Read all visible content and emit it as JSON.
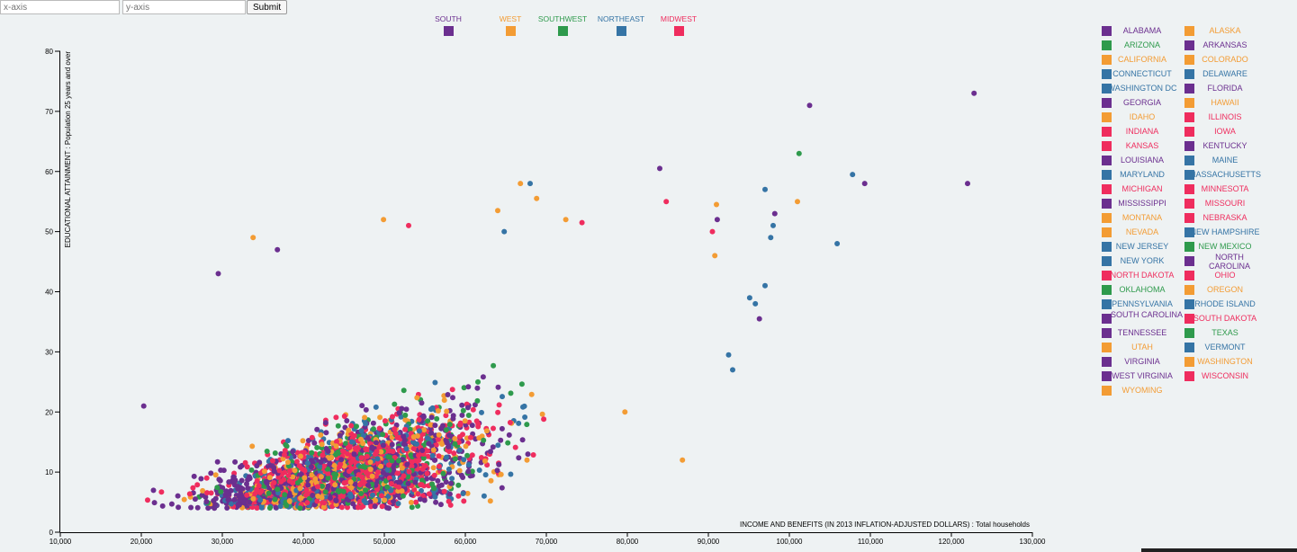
{
  "controls": {
    "x_placeholder": "x-axis",
    "y_placeholder": "y-axis",
    "submit_label": "Submit"
  },
  "regions": [
    {
      "name": "SOUTH",
      "color": "#6b2f8f"
    },
    {
      "name": "WEST",
      "color": "#f39c34"
    },
    {
      "name": "SOUTHWEST",
      "color": "#2e9a4c"
    },
    {
      "name": "NORTHEAST",
      "color": "#3574a5"
    },
    {
      "name": "MIDWEST",
      "color": "#ef2d5e"
    }
  ],
  "states": [
    {
      "name": "ALABAMA",
      "region": "SOUTH"
    },
    {
      "name": "ALASKA",
      "region": "WEST"
    },
    {
      "name": "ARIZONA",
      "region": "SOUTHWEST"
    },
    {
      "name": "ARKANSAS",
      "region": "SOUTH"
    },
    {
      "name": "CALIFORNIA",
      "region": "WEST"
    },
    {
      "name": "COLORADO",
      "region": "WEST"
    },
    {
      "name": "CONNECTICUT",
      "region": "NORTHEAST"
    },
    {
      "name": "DELAWARE",
      "region": "NORTHEAST"
    },
    {
      "name": "WASHINGTON DC",
      "region": "NORTHEAST"
    },
    {
      "name": "FLORIDA",
      "region": "SOUTH"
    },
    {
      "name": "GEORGIA",
      "region": "SOUTH"
    },
    {
      "name": "HAWAII",
      "region": "WEST"
    },
    {
      "name": "IDAHO",
      "region": "WEST"
    },
    {
      "name": "ILLINOIS",
      "region": "MIDWEST"
    },
    {
      "name": "INDIANA",
      "region": "MIDWEST"
    },
    {
      "name": "IOWA",
      "region": "MIDWEST"
    },
    {
      "name": "KANSAS",
      "region": "MIDWEST"
    },
    {
      "name": "KENTUCKY",
      "region": "SOUTH"
    },
    {
      "name": "LOUISIANA",
      "region": "SOUTH"
    },
    {
      "name": "MAINE",
      "region": "NORTHEAST"
    },
    {
      "name": "MARYLAND",
      "region": "NORTHEAST"
    },
    {
      "name": "MASSACHUSETTS",
      "region": "NORTHEAST"
    },
    {
      "name": "MICHIGAN",
      "region": "MIDWEST"
    },
    {
      "name": "MINNESOTA",
      "region": "MIDWEST"
    },
    {
      "name": "MISSISSIPPI",
      "region": "SOUTH"
    },
    {
      "name": "MISSOURI",
      "region": "MIDWEST"
    },
    {
      "name": "MONTANA",
      "region": "WEST"
    },
    {
      "name": "NEBRASKA",
      "region": "MIDWEST"
    },
    {
      "name": "NEVADA",
      "region": "WEST"
    },
    {
      "name": "NEW HAMPSHIRE",
      "region": "NORTHEAST"
    },
    {
      "name": "NEW JERSEY",
      "region": "NORTHEAST"
    },
    {
      "name": "NEW MEXICO",
      "region": "SOUTHWEST"
    },
    {
      "name": "NEW YORK",
      "region": "NORTHEAST"
    },
    {
      "name": "NORTH CAROLINA",
      "region": "SOUTH"
    },
    {
      "name": "NORTH DAKOTA",
      "region": "MIDWEST"
    },
    {
      "name": "OHIO",
      "region": "MIDWEST"
    },
    {
      "name": "OKLAHOMA",
      "region": "SOUTHWEST"
    },
    {
      "name": "OREGON",
      "region": "WEST"
    },
    {
      "name": "PENNSYLVANIA",
      "region": "NORTHEAST"
    },
    {
      "name": "RHODE ISLAND",
      "region": "NORTHEAST"
    },
    {
      "name": "SOUTH CAROLINA",
      "region": "SOUTH"
    },
    {
      "name": "SOUTH DAKOTA",
      "region": "MIDWEST"
    },
    {
      "name": "TENNESSEE",
      "region": "SOUTH"
    },
    {
      "name": "TEXAS",
      "region": "SOUTHWEST"
    },
    {
      "name": "UTAH",
      "region": "WEST"
    },
    {
      "name": "VERMONT",
      "region": "NORTHEAST"
    },
    {
      "name": "VIRGINIA",
      "region": "SOUTH"
    },
    {
      "name": "WASHINGTON",
      "region": "WEST"
    },
    {
      "name": "WEST VIRGINIA",
      "region": "SOUTH"
    },
    {
      "name": "WISCONSIN",
      "region": "MIDWEST"
    },
    {
      "name": "WYOMING",
      "region": "WEST"
    }
  ],
  "chart_data": {
    "type": "scatter",
    "xlabel": "INCOME AND BENEFITS (IN 2013 INFLATION-ADJUSTED DOLLARS) : Total households",
    "ylabel": "EDUCATIONAL ATTAINMENT : Population 25 years and over",
    "xlim": [
      10000,
      130000
    ],
    "ylim": [
      0,
      80
    ],
    "x_ticks": [
      "10,000",
      "20,000",
      "30,000",
      "40,000",
      "50,000",
      "60,000",
      "70,000",
      "80,000",
      "90,000",
      "100,000",
      "110,000",
      "120,000",
      "130,000"
    ],
    "y_ticks": [
      "0",
      "10",
      "20",
      "30",
      "40",
      "50",
      "60",
      "70",
      "80"
    ],
    "grid": false,
    "legend": "top",
    "points": [
      {
        "x": 20300,
        "y": 21,
        "region": "SOUTH"
      },
      {
        "x": 29500,
        "y": 43,
        "region": "SOUTH"
      },
      {
        "x": 102500,
        "y": 71,
        "region": "SOUTH"
      },
      {
        "x": 122800,
        "y": 73,
        "region": "SOUTH"
      },
      {
        "x": 101200,
        "y": 63,
        "region": "SOUTHWEST"
      },
      {
        "x": 107800,
        "y": 59.5,
        "region": "NORTHEAST"
      },
      {
        "x": 109300,
        "y": 58,
        "region": "SOUTH"
      },
      {
        "x": 122000,
        "y": 58,
        "region": "SOUTH"
      },
      {
        "x": 105900,
        "y": 48,
        "region": "NORTHEAST"
      },
      {
        "x": 97000,
        "y": 57,
        "region": "NORTHEAST"
      },
      {
        "x": 101000,
        "y": 55,
        "region": "WEST"
      },
      {
        "x": 98200,
        "y": 53,
        "region": "SOUTH"
      },
      {
        "x": 98000,
        "y": 51,
        "region": "NORTHEAST"
      },
      {
        "x": 97700,
        "y": 49,
        "region": "NORTHEAST"
      },
      {
        "x": 97000,
        "y": 41,
        "region": "NORTHEAST"
      },
      {
        "x": 95100,
        "y": 39,
        "region": "NORTHEAST"
      },
      {
        "x": 95800,
        "y": 38,
        "region": "NORTHEAST"
      },
      {
        "x": 96300,
        "y": 35.5,
        "region": "SOUTH"
      },
      {
        "x": 92500,
        "y": 29.5,
        "region": "NORTHEAST"
      },
      {
        "x": 93000,
        "y": 27,
        "region": "NORTHEAST"
      },
      {
        "x": 91100,
        "y": 52,
        "region": "SOUTH"
      },
      {
        "x": 91000,
        "y": 54.5,
        "region": "WEST"
      },
      {
        "x": 90500,
        "y": 50,
        "region": "MIDWEST"
      },
      {
        "x": 90800,
        "y": 46,
        "region": "WEST"
      },
      {
        "x": 84000,
        "y": 60.5,
        "region": "SOUTH"
      },
      {
        "x": 84800,
        "y": 55,
        "region": "MIDWEST"
      },
      {
        "x": 68000,
        "y": 58,
        "region": "NORTHEAST"
      },
      {
        "x": 66800,
        "y": 58,
        "region": "WEST"
      },
      {
        "x": 68800,
        "y": 55.5,
        "region": "WEST"
      },
      {
        "x": 79700,
        "y": 20,
        "region": "WEST"
      },
      {
        "x": 86800,
        "y": 12,
        "region": "WEST"
      },
      {
        "x": 33800,
        "y": 49,
        "region": "WEST"
      },
      {
        "x": 36800,
        "y": 47,
        "region": "SOUTH"
      },
      {
        "x": 49900,
        "y": 52,
        "region": "WEST"
      },
      {
        "x": 53000,
        "y": 51,
        "region": "MIDWEST"
      },
      {
        "x": 64000,
        "y": 53.5,
        "region": "WEST"
      },
      {
        "x": 64800,
        "y": 50,
        "region": "NORTHEAST"
      },
      {
        "x": 72400,
        "y": 52,
        "region": "WEST"
      },
      {
        "x": 74400,
        "y": 51.5,
        "region": "MIDWEST"
      },
      {
        "x": 55900,
        "y": 8,
        "region": "SOUTHWEST"
      },
      {
        "x": 39600,
        "y": 4,
        "region": "SOUTHWEST"
      },
      {
        "x": 41800,
        "y": 6,
        "region": "WEST"
      }
    ]
  }
}
